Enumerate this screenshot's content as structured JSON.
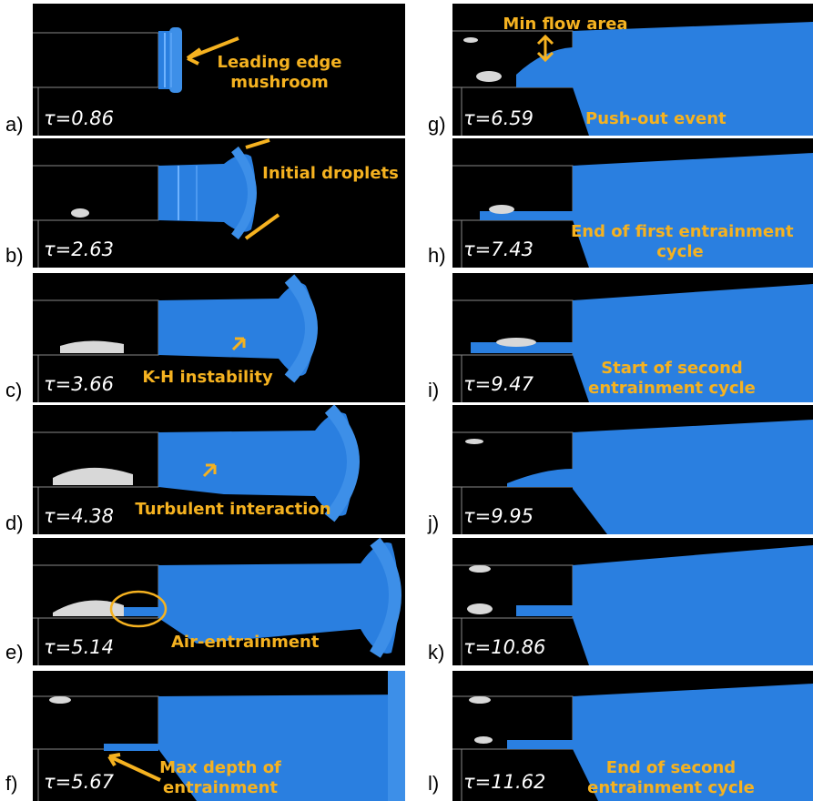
{
  "colors": {
    "background": "#000000",
    "jet": "#2a7fe0",
    "jet_light": "#6fb3ff",
    "annotation": "#f5b220",
    "tau_text": "#ffffff",
    "droplets": "#d8d8d8"
  },
  "panels": [
    {
      "letter": "a)",
      "tau": "τ=0.86",
      "annotation": [
        "Leading edge",
        "mushroom"
      ]
    },
    {
      "letter": "b)",
      "tau": "τ=2.63",
      "annotation": [
        "Initial droplets"
      ]
    },
    {
      "letter": "c)",
      "tau": "τ=3.66",
      "annotation": [
        "K-H instability"
      ]
    },
    {
      "letter": "d)",
      "tau": "τ=4.38",
      "annotation": [
        "Turbulent interaction"
      ]
    },
    {
      "letter": "e)",
      "tau": "τ=5.14",
      "annotation": [
        "Air-entrainment"
      ]
    },
    {
      "letter": "f)",
      "tau": "τ=5.67",
      "annotation": [
        "Max depth of",
        "entrainment"
      ]
    },
    {
      "letter": "g)",
      "tau": "τ=6.59",
      "annotation": [
        "Min flow area",
        "Push-out event"
      ]
    },
    {
      "letter": "h)",
      "tau": "τ=7.43",
      "annotation": [
        "End of first entrainment",
        "cycle"
      ]
    },
    {
      "letter": "i)",
      "tau": "τ=9.47",
      "annotation": [
        "Start of second",
        "entrainment cycle"
      ]
    },
    {
      "letter": "j)",
      "tau": "τ=9.95",
      "annotation": []
    },
    {
      "letter": "k)",
      "tau": "τ=10.86",
      "annotation": []
    },
    {
      "letter": "l)",
      "tau": "τ=11.62",
      "annotation": [
        "End of second",
        "entrainment cycle"
      ]
    }
  ]
}
